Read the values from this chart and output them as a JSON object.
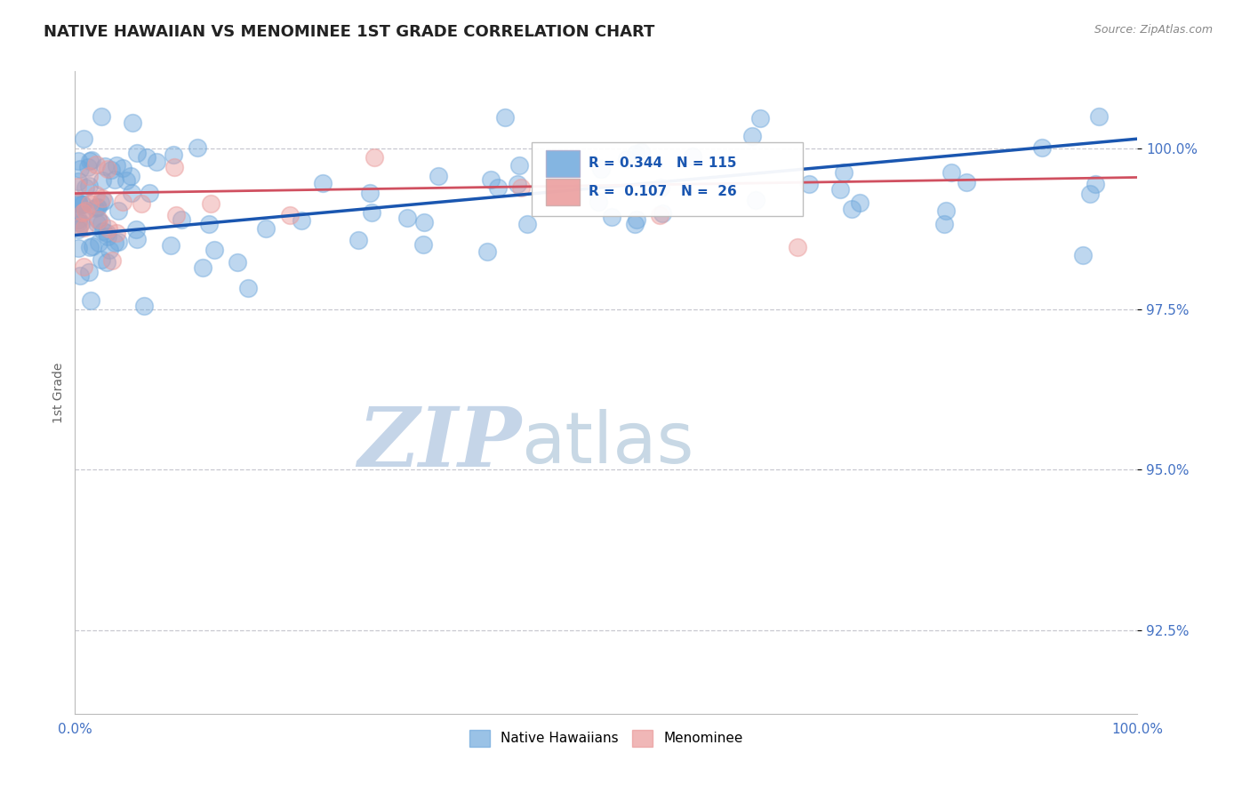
{
  "title": "NATIVE HAWAIIAN VS MENOMINEE 1ST GRADE CORRELATION CHART",
  "source_text": "Source: ZipAtlas.com",
  "ylabel": "1st Grade",
  "x_tick_labels": [
    "0.0%",
    "100.0%"
  ],
  "y_tick_labels": [
    "92.5%",
    "95.0%",
    "97.5%",
    "100.0%"
  ],
  "x_min": 0.0,
  "x_max": 100.0,
  "y_min": 91.2,
  "y_max": 101.2,
  "y_tick_positions": [
    92.5,
    95.0,
    97.5,
    100.0
  ],
  "watermark_zip": "ZIP",
  "watermark_atlas": "atlas",
  "legend_r1": "R = 0.344",
  "legend_n1": "N = 115",
  "legend_r2": "R =  0.107",
  "legend_n2": "N =  26",
  "blue_color": "#6fa8dc",
  "pink_color": "#ea9999",
  "blue_line_color": "#1a56b0",
  "pink_line_color": "#d05060",
  "blue_trend_x0": 0.0,
  "blue_trend_y0": 98.65,
  "blue_trend_x1": 100.0,
  "blue_trend_y1": 100.15,
  "pink_trend_x0": 0.0,
  "pink_trend_y0": 99.3,
  "pink_trend_x1": 100.0,
  "pink_trend_y1": 99.55,
  "grid_color": "#c8c8d0",
  "background_color": "#ffffff",
  "title_fontsize": 13,
  "axis_label_color": "#666666",
  "tick_label_color": "#4472c4",
  "marker_size": 200,
  "blue_N": 115,
  "pink_N": 26,
  "blue_seed": 12,
  "pink_seed": 77
}
